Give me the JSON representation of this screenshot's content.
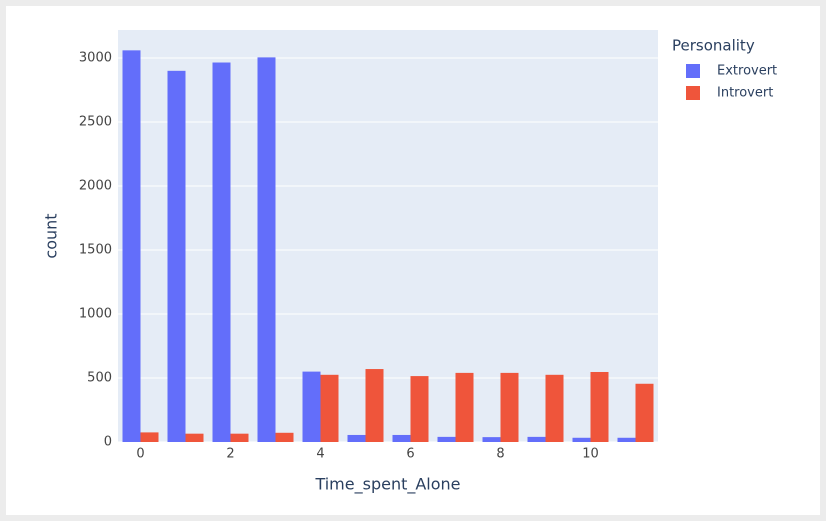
{
  "chart_data": {
    "type": "bar",
    "x_label": "Time_spent_Alone",
    "y_label": "count",
    "x": [
      0,
      1,
      2,
      3,
      4,
      5,
      6,
      7,
      8,
      9,
      10,
      11
    ],
    "series": [
      {
        "name": "Extrovert",
        "color": "#636efa",
        "values": [
          3060,
          2900,
          2965,
          3005,
          550,
          55,
          55,
          40,
          38,
          40,
          33,
          33
        ]
      },
      {
        "name": "Introvert",
        "color": "#ef553b",
        "values": [
          75,
          65,
          65,
          72,
          525,
          570,
          515,
          540,
          540,
          525,
          547,
          455
        ]
      }
    ],
    "legend_title": "Personality",
    "xlim": [
      -0.5,
      11.5
    ],
    "xticks": [
      0,
      2,
      4,
      6,
      8,
      10
    ],
    "ylim": [
      0,
      3219
    ],
    "yticks": [
      0,
      500,
      1000,
      1500,
      2000,
      2500,
      3000
    ],
    "grid": true,
    "legend_position": "right",
    "background": "#e5ecf6"
  }
}
